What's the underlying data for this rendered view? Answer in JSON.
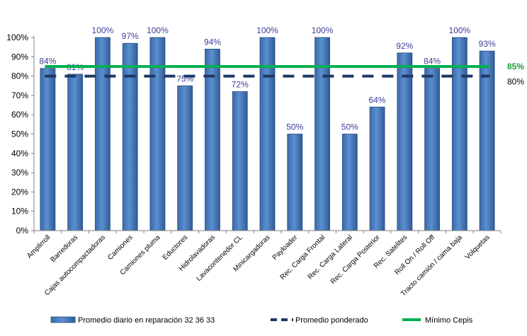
{
  "chart_data": {
    "type": "bar",
    "categories": [
      "Amplirroll",
      "Barredoras",
      "Cajas autocompactadoras",
      "Camiones",
      "Camiones pluma",
      "Eductores",
      "Hidrolavadoras",
      "Lavacontenedor CL",
      "Minicargadoras",
      "Payloader",
      "Rec. Carga Frontal",
      "Rec. Carga Lateral",
      "Rec. Carga Posterior",
      "Rec. Satelites",
      "Roll On / Roll Off",
      "Tracto camión / cama baja",
      "Volquetas"
    ],
    "series": [
      {
        "name": "Promedio diario en reparación 32   36 33",
        "type": "bar",
        "values": [
          84,
          81,
          100,
          97,
          100,
          75,
          94,
          72,
          100,
          50,
          100,
          50,
          64,
          92,
          84,
          100,
          93
        ],
        "data_labels": [
          "84%",
          "81%",
          "100%",
          "97%",
          "100%",
          "75%",
          "94%",
          "72%",
          "100%",
          "50%",
          "100%",
          "50%",
          "64%",
          "92%",
          "84%",
          "100%",
          "93%"
        ],
        "color": "#4f81bd"
      },
      {
        "name": "Promedio ponderado",
        "type": "line",
        "style": "dashed",
        "value": 80,
        "label": "80%",
        "color": "#1f3864"
      },
      {
        "name": "Mínimo Cepis",
        "type": "line",
        "style": "solid",
        "value": 85,
        "label": "85%",
        "color": "#00b050"
      }
    ],
    "ylim": [
      0,
      100
    ],
    "yticks": [
      "0%",
      "10%",
      "20%",
      "30%",
      "40%",
      "50%",
      "60%",
      "70%",
      "80%",
      "90%",
      "100%"
    ],
    "grid": false,
    "legend_position": "bottom"
  }
}
